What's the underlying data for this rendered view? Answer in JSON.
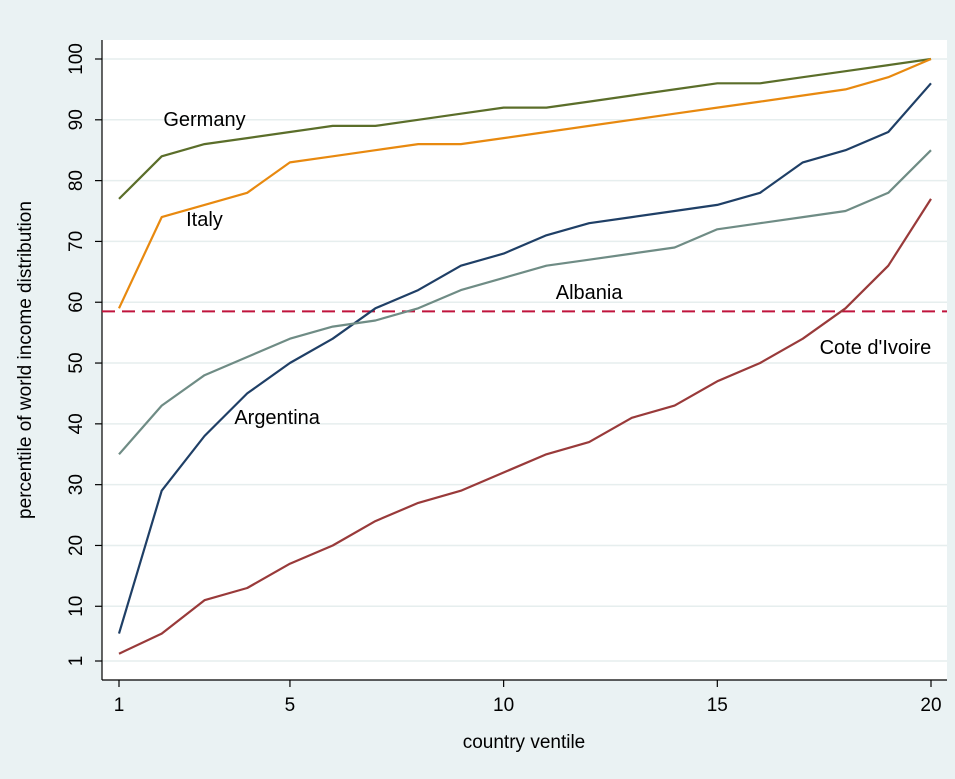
{
  "chart_data": {
    "type": "line",
    "title": "",
    "xlabel": "country ventile",
    "ylabel": "percentile of world income distribution",
    "xlim": [
      1,
      20
    ],
    "ylim": [
      1,
      100
    ],
    "x_ticks": [
      1,
      5,
      10,
      15,
      20
    ],
    "y_ticks": [
      1,
      10,
      20,
      30,
      40,
      50,
      60,
      70,
      80,
      90,
      100
    ],
    "grid": true,
    "legend": "none",
    "reference_line": {
      "y": 58.5,
      "color": "#c0143c",
      "style": "dashed"
    },
    "x": [
      1,
      2,
      3,
      4,
      5,
      6,
      7,
      8,
      9,
      10,
      11,
      12,
      13,
      14,
      15,
      16,
      17,
      18,
      19,
      20
    ],
    "series": [
      {
        "name": "Germany",
        "color": "#5b6e2a",
        "values": [
          77,
          84,
          86,
          87,
          88,
          89,
          89,
          90,
          91,
          92,
          92,
          93,
          94,
          95,
          96,
          96,
          97,
          98,
          99,
          100
        ]
      },
      {
        "name": "Italy",
        "color": "#e8890f",
        "values": [
          59,
          74,
          76,
          78,
          83,
          84,
          85,
          86,
          86,
          87,
          88,
          89,
          90,
          91,
          92,
          93,
          94,
          95,
          97,
          100
        ]
      },
      {
        "name": "Argentina",
        "color": "#1f3f66",
        "values": [
          5.5,
          29,
          38,
          45,
          50,
          54,
          59,
          62,
          66,
          68,
          71,
          73,
          74,
          75,
          76,
          78,
          83,
          85,
          88,
          96
        ]
      },
      {
        "name": "Albania",
        "color": "#6f8c85",
        "values": [
          35,
          43,
          48,
          51,
          54,
          56,
          57,
          59,
          62,
          64,
          66,
          67,
          68,
          69,
          72,
          73,
          74,
          75,
          78,
          85
        ]
      },
      {
        "name": "Cote d'Ivoire",
        "color": "#993a3a",
        "values": [
          2.2,
          5.5,
          11,
          13,
          17,
          20,
          24,
          27,
          29,
          32,
          35,
          37,
          41,
          43,
          47,
          50,
          54,
          59,
          66,
          77
        ]
      }
    ],
    "annotations": [
      {
        "text": "Germany",
        "x": 3,
        "y": 89
      },
      {
        "text": "Italy",
        "x": 3,
        "y": 72.5
      },
      {
        "text": "Albania",
        "x": 12,
        "y": 60.5
      },
      {
        "text": "Argentina",
        "x": 4.7,
        "y": 40
      },
      {
        "text": "Cote d'Ivoire",
        "x": 18.7,
        "y": 51.5
      }
    ]
  }
}
